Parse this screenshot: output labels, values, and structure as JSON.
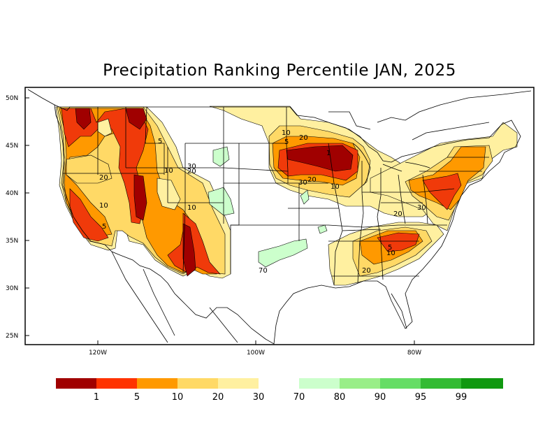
{
  "title": "Precipitation Ranking Percentile JAN, 2025",
  "lat_labels": [
    "50N",
    "45N",
    "40N",
    "35N",
    "30N",
    "25N"
  ],
  "lon_labels": [
    "120W",
    "100W",
    "80W"
  ],
  "contour_labels": {
    "c1": "1",
    "c5a": "5",
    "c5b": "5",
    "c5c": "5",
    "c5d": "5",
    "c10a": "10",
    "c10b": "10",
    "c10c": "10",
    "c10d": "10",
    "c10e": "10",
    "c10f": "10",
    "c20a": "20",
    "c20b": "20",
    "c20c": "20",
    "c20d": "20",
    "c20e": "20",
    "c30a": "30",
    "c30b": "30",
    "c30c": "30",
    "c70": "70"
  },
  "legend": {
    "dry_labels": [
      "1",
      "5",
      "10",
      "20",
      "30"
    ],
    "wet_labels": [
      "70",
      "80",
      "90",
      "95",
      "99"
    ],
    "dry_colors": [
      "#a00000",
      "#ff3300",
      "#ff9900",
      "#ffd966",
      "#fff0a0"
    ],
    "wet_colors": [
      "#ccffcc",
      "#99ee88",
      "#66dd66",
      "#33bb33",
      "#119911"
    ]
  },
  "colors": {
    "lt1": "#a00000",
    "lt5": "#f03a0a",
    "lt10": "#ff9900",
    "lt20": "#ffd966",
    "lt30": "#fff0a0",
    "gt70": "#ccffcc"
  }
}
